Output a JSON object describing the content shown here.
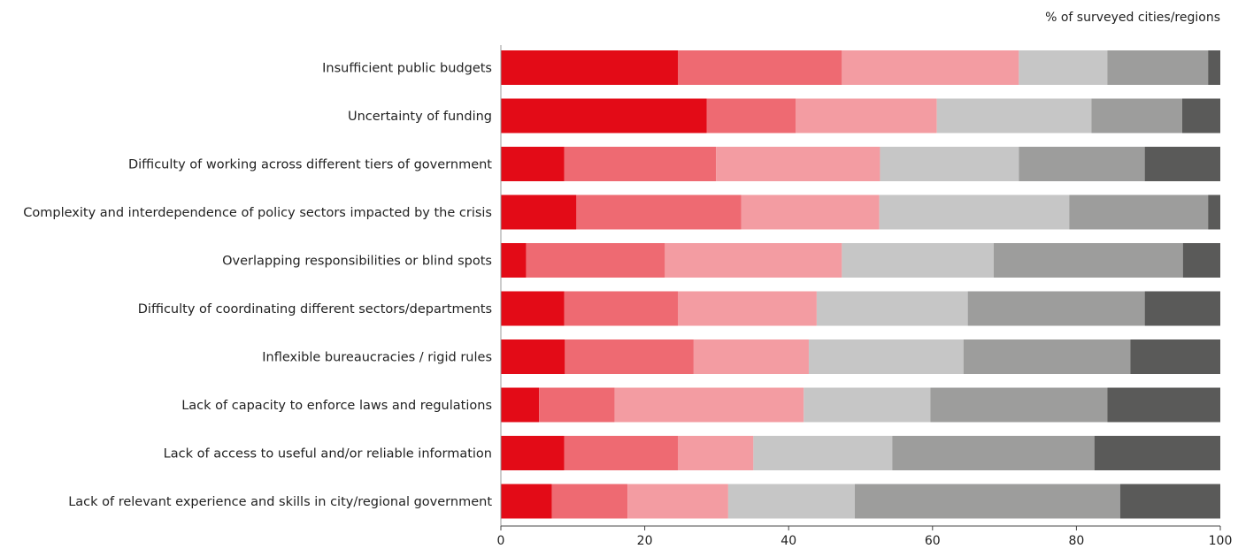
{
  "chart_data": {
    "type": "bar",
    "orientation": "horizontal",
    "stacked": true,
    "unit_label": "% of surveyed cities/regions",
    "title": "",
    "xlabel": "",
    "ylabel": "",
    "xlim": [
      0,
      100
    ],
    "xticks": [
      0,
      20,
      40,
      60,
      80,
      100
    ],
    "grid": false,
    "legend": "none",
    "colors": [
      "#e30b17",
      "#ee6a72",
      "#f39ca2",
      "#c6c6c6",
      "#9d9d9c",
      "#5a5a59"
    ],
    "categories": [
      "Insufficient public budgets",
      "Uncertainty of funding",
      "Difficulty of working across different tiers of government",
      "Complexity and interdependence of policy sectors impacted by the crisis",
      "Overlapping responsibilities or blind spots",
      "Difficulty of coordinating different sectors/departments",
      "Inflexible bureaucracies / rigid rules",
      "Lack of capacity to enforce laws and regulations",
      "Lack of access to useful and/or reliable information",
      "Lack of relevant experience and skills in city/regional government"
    ],
    "series": [
      {
        "values": [
          24.6,
          28.6,
          8.8,
          10.5,
          3.5,
          8.8,
          8.9,
          5.3,
          8.8,
          7.1
        ]
      },
      {
        "values": [
          22.8,
          12.4,
          21.1,
          22.9,
          19.3,
          15.8,
          17.9,
          10.5,
          15.8,
          10.5
        ]
      },
      {
        "values": [
          24.6,
          19.6,
          22.8,
          19.2,
          24.6,
          19.3,
          16.0,
          26.3,
          10.5,
          14.0
        ]
      },
      {
        "values": [
          12.3,
          21.5,
          19.3,
          26.4,
          21.1,
          21.0,
          21.5,
          17.6,
          19.3,
          17.6
        ]
      },
      {
        "values": [
          14.0,
          12.6,
          17.5,
          19.3,
          26.3,
          24.6,
          23.2,
          24.6,
          28.1,
          36.9
        ]
      },
      {
        "values": [
          1.7,
          5.3,
          10.5,
          1.7,
          5.2,
          10.5,
          12.5,
          15.7,
          17.5,
          13.9
        ]
      }
    ]
  }
}
